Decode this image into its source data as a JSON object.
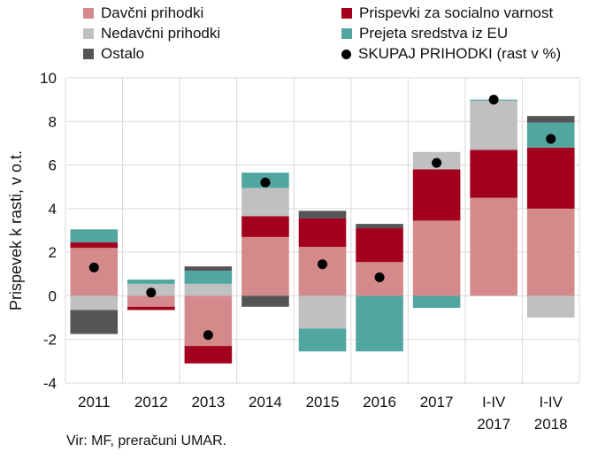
{
  "source": "Vir: MF, preračuni UMAR.",
  "chart_data": {
    "type": "bar",
    "stacked": true,
    "ylabel": "Prispevek k rasti, v o.t.",
    "ylim": [
      -4,
      10
    ],
    "yticks": [
      -4,
      -2,
      0,
      2,
      4,
      6,
      8,
      10
    ],
    "grid": true,
    "legend_position": "top",
    "categories": [
      [
        "2011"
      ],
      [
        "2012"
      ],
      [
        "2013"
      ],
      [
        "2014"
      ],
      [
        "2015"
      ],
      [
        "2016"
      ],
      [
        "2017"
      ],
      [
        "I-IV",
        "2017"
      ],
      [
        "I-IV",
        "2018"
      ]
    ],
    "series": [
      {
        "name": "Davčni prihodki",
        "color": "#d48a8a",
        "values": [
          2.2,
          -0.5,
          -2.3,
          2.7,
          2.25,
          1.55,
          3.45,
          4.5,
          4.0
        ]
      },
      {
        "name": "Prispevki za socialno varnost",
        "color": "#a3001e",
        "values": [
          0.25,
          -0.15,
          -0.8,
          0.95,
          1.3,
          1.55,
          2.35,
          2.2,
          2.8
        ]
      },
      {
        "name": "Nedavčni prihodki",
        "color": "#c0c0c0",
        "values": [
          -0.65,
          0.55,
          0.55,
          1.3,
          -1.5,
          0.0,
          0.8,
          2.25,
          -1.0
        ]
      },
      {
        "name": "Prejeta sredstva iz EU",
        "color": "#52a6a0",
        "values": [
          0.6,
          0.2,
          0.6,
          0.7,
          -1.05,
          -2.55,
          -0.55,
          0.05,
          1.15
        ]
      },
      {
        "name": "Ostalo",
        "color": "#555555",
        "values": [
          -1.1,
          0.0,
          0.2,
          -0.5,
          0.35,
          0.2,
          0.0,
          0.0,
          0.3
        ]
      }
    ],
    "total": {
      "name": "SKUPAJ PRIHODKI (rast v %)",
      "color": "#000000",
      "values": [
        1.3,
        0.15,
        -1.8,
        5.2,
        1.45,
        0.85,
        6.1,
        9.0,
        7.2
      ]
    }
  }
}
